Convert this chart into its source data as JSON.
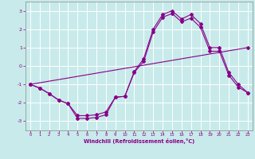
{
  "xlabel": "Windchill (Refroidissement éolien,°C)",
  "bg_color": "#c8eaea",
  "line_color": "#880088",
  "grid_color": "#ffffff",
  "xlim": [
    -0.5,
    23.5
  ],
  "ylim": [
    -3.5,
    3.5
  ],
  "yticks": [
    -3,
    -2,
    -1,
    0,
    1,
    2,
    3
  ],
  "xticks": [
    0,
    1,
    2,
    3,
    4,
    5,
    6,
    7,
    8,
    9,
    10,
    11,
    12,
    13,
    14,
    15,
    16,
    17,
    18,
    19,
    20,
    21,
    22,
    23
  ],
  "series1_x": [
    0,
    1,
    2,
    3,
    4,
    5,
    6,
    7,
    8,
    9,
    10,
    11,
    12,
    13,
    14,
    15,
    16,
    17,
    18,
    19,
    20,
    21,
    22,
    23
  ],
  "series1_y": [
    -1.0,
    -1.2,
    -1.5,
    -1.85,
    -2.05,
    -2.85,
    -2.85,
    -2.8,
    -2.65,
    -1.7,
    -1.65,
    -0.3,
    0.4,
    2.0,
    2.8,
    3.0,
    2.55,
    2.8,
    2.3,
    1.0,
    1.0,
    -0.35,
    -1.0,
    -1.45
  ],
  "series2_x": [
    0,
    1,
    2,
    3,
    4,
    5,
    6,
    7,
    8,
    9,
    10,
    11,
    12,
    13,
    14,
    15,
    16,
    17,
    18,
    19,
    20,
    21,
    22,
    23
  ],
  "series2_y": [
    -1.0,
    -1.2,
    -1.5,
    -1.85,
    -2.05,
    -2.7,
    -2.7,
    -2.65,
    -2.5,
    -1.7,
    -1.65,
    -0.35,
    0.25,
    1.85,
    2.65,
    2.85,
    2.4,
    2.6,
    2.1,
    0.8,
    0.8,
    -0.5,
    -1.15,
    -1.45
  ],
  "series3_x": [
    0,
    23
  ],
  "series3_y": [
    -1.0,
    1.0
  ]
}
